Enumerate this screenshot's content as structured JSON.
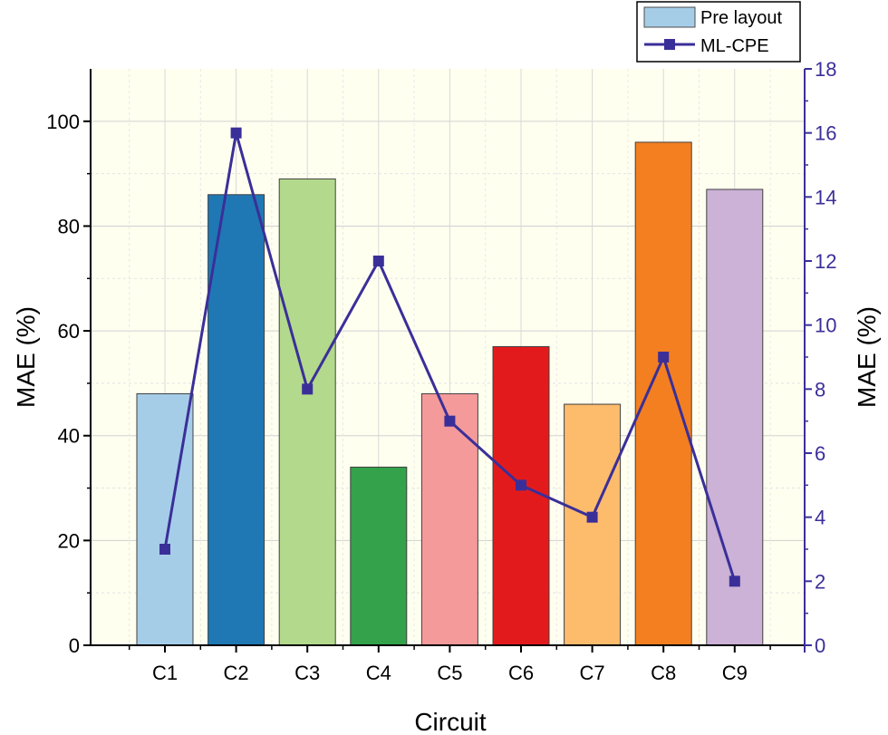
{
  "chart_data": {
    "type": "bar+line",
    "xlabel": "Circuit",
    "categories": [
      "C1",
      "C2",
      "C3",
      "C4",
      "C5",
      "C6",
      "C7",
      "C8",
      "C9"
    ],
    "bar_series": {
      "name": "Pre layout",
      "axis": "left",
      "values": [
        48,
        86,
        89,
        34,
        48,
        57,
        46,
        96,
        87
      ],
      "colors": [
        "#a6cde8",
        "#1f78b4",
        "#b3d98c",
        "#33a24a",
        "#f49a9a",
        "#e31a1c",
        "#fdbb6c",
        "#f47f20",
        "#cbb2d6"
      ]
    },
    "line_series": {
      "name": "ML-CPE",
      "axis": "right",
      "values": [
        3,
        16,
        8,
        12,
        7,
        5,
        4,
        9,
        2
      ],
      "color": "#3a2f99"
    },
    "left_axis": {
      "label": "MAE (%)",
      "range": [
        0,
        110
      ],
      "ticks": [
        0,
        20,
        40,
        60,
        80,
        100
      ],
      "tick_labels": [
        "0",
        "20",
        "40",
        "60",
        "80",
        "100"
      ]
    },
    "right_axis": {
      "label": "MAE (%)",
      "range": [
        0,
        18
      ],
      "ticks": [
        0,
        2,
        4,
        6,
        8,
        10,
        12,
        14,
        16,
        18
      ],
      "tick_labels": [
        "0",
        "2",
        "4",
        "6",
        "8",
        "10",
        "12",
        "14",
        "16",
        "18"
      ],
      "color": "#3a2f99"
    },
    "legend": {
      "position": "top-right, above plot",
      "entries": [
        "Pre layout",
        "ML-CPE"
      ]
    },
    "grid": true,
    "plot_background": "#fffff0"
  }
}
